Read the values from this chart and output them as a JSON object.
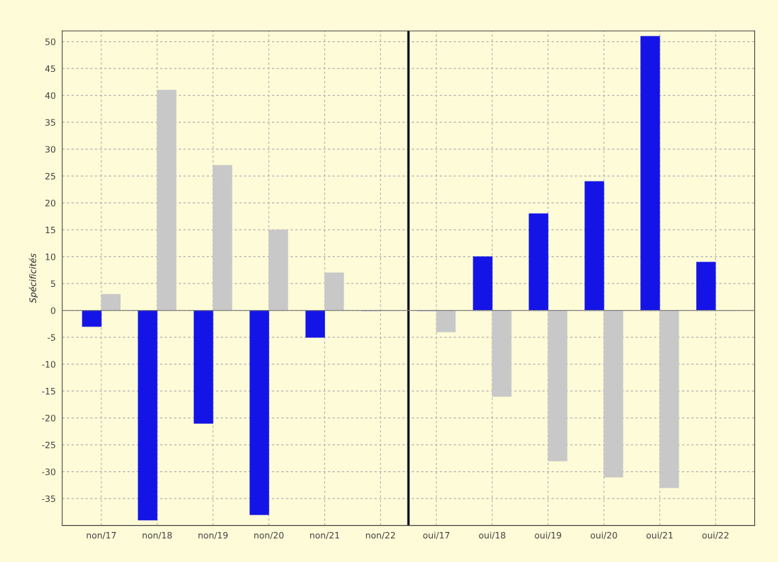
{
  "chart_data": {
    "type": "bar",
    "ylabel": "Spécificités",
    "categories": [
      "non/17",
      "non/18",
      "non/19",
      "non/20",
      "non/21",
      "non/22",
      "oui/17",
      "oui/18",
      "oui/19",
      "oui/20",
      "oui/21",
      "oui/22"
    ],
    "series": [
      {
        "color": "#1414e6",
        "values": [
          -3,
          -39,
          -21,
          -38,
          -5,
          0,
          0,
          10,
          18,
          24,
          51,
          9
        ]
      },
      {
        "color": "#c8c8c8",
        "values": [
          3,
          41,
          27,
          15,
          7,
          0,
          -4,
          -16,
          -28,
          -31,
          -33,
          0
        ]
      }
    ],
    "ylim": [
      -40,
      52
    ],
    "yticks": [
      -35,
      -30,
      -25,
      -20,
      -15,
      -10,
      -5,
      0,
      5,
      10,
      15,
      20,
      25,
      30,
      35,
      40,
      45,
      50
    ],
    "grid": true,
    "ref_lines": [
      {
        "axis": "y",
        "value": 0,
        "color": "#808080"
      }
    ]
  }
}
